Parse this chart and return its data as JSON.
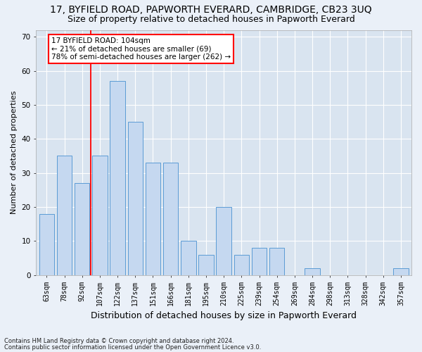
{
  "title": "17, BYFIELD ROAD, PAPWORTH EVERARD, CAMBRIDGE, CB23 3UQ",
  "subtitle": "Size of property relative to detached houses in Papworth Everard",
  "xlabel": "Distribution of detached houses by size in Papworth Everard",
  "ylabel": "Number of detached properties",
  "footer1": "Contains HM Land Registry data © Crown copyright and database right 2024.",
  "footer2": "Contains public sector information licensed under the Open Government Licence v3.0.",
  "categories": [
    "63sqm",
    "78sqm",
    "92sqm",
    "107sqm",
    "122sqm",
    "137sqm",
    "151sqm",
    "166sqm",
    "181sqm",
    "195sqm",
    "210sqm",
    "225sqm",
    "239sqm",
    "254sqm",
    "269sqm",
    "284sqm",
    "298sqm",
    "313sqm",
    "328sqm",
    "342sqm",
    "357sqm"
  ],
  "values": [
    18,
    35,
    27,
    35,
    57,
    45,
    33,
    33,
    10,
    6,
    20,
    6,
    8,
    8,
    0,
    2,
    0,
    0,
    0,
    0,
    2
  ],
  "bar_color": "#c5d8f0",
  "bar_edge_color": "#5b9bd5",
  "vline_x": 2.5,
  "annotation_text": "17 BYFIELD ROAD: 104sqm\n← 21% of detached houses are smaller (69)\n78% of semi-detached houses are larger (262) →",
  "annotation_box_color": "white",
  "annotation_box_edge_color": "red",
  "vline_color": "red",
  "ylim": [
    0,
    72
  ],
  "yticks": [
    0,
    10,
    20,
    30,
    40,
    50,
    60,
    70
  ],
  "bg_color": "#eaf0f8",
  "plot_bg_color": "#d9e4f0",
  "grid_color": "white",
  "title_fontsize": 10,
  "subtitle_fontsize": 9,
  "ylabel_fontsize": 8,
  "xlabel_fontsize": 9,
  "tick_fontsize": 7,
  "annotation_fontsize": 7.5
}
